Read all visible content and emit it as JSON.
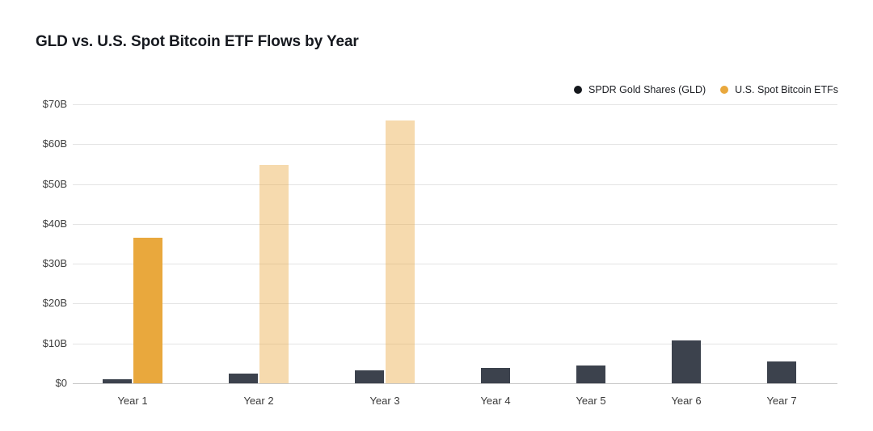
{
  "title": "GLD vs. U.S. Spot Bitcoin ETF Flows by Year",
  "legend": {
    "items": [
      {
        "label": "SPDR Gold Shares (GLD)",
        "dot_color": "#15181d"
      },
      {
        "label": "U.S. Spot Bitcoin ETFs",
        "dot_color": "#e9a83d"
      }
    ]
  },
  "chart_data": {
    "type": "bar",
    "title": "GLD vs. U.S. Spot Bitcoin ETF Flows by Year",
    "categories": [
      "Year 1",
      "Year 2",
      "Year 3",
      "Year 4",
      "Year 5",
      "Year 6",
      "Year 7"
    ],
    "series": [
      {
        "name": "SPDR Gold Shares (GLD)",
        "color": "#3c424d",
        "values": [
          1.0,
          2.4,
          3.3,
          3.8,
          4.4,
          10.8,
          5.5
        ]
      },
      {
        "name": "U.S. Spot Bitcoin ETFs",
        "color": "#e9a83d",
        "values": [
          36.6,
          54.8,
          66.0,
          null,
          null,
          null,
          null
        ],
        "faded": [
          false,
          true,
          true,
          false,
          false,
          false,
          false
        ],
        "faded_opacity": 0.42
      }
    ],
    "xlabel": "",
    "ylabel": "",
    "ylim": [
      0,
      70
    ],
    "yticks": [
      {
        "value": 0,
        "label": "$0"
      },
      {
        "value": 10,
        "label": "$10B"
      },
      {
        "value": 20,
        "label": "$20B"
      },
      {
        "value": 30,
        "label": "$30B"
      },
      {
        "value": 40,
        "label": "$40B"
      },
      {
        "value": 50,
        "label": "$50B"
      },
      {
        "value": 60,
        "label": "$60B"
      },
      {
        "value": 70,
        "label": "$70B"
      }
    ],
    "grid": true,
    "legend_position": "top-right"
  }
}
